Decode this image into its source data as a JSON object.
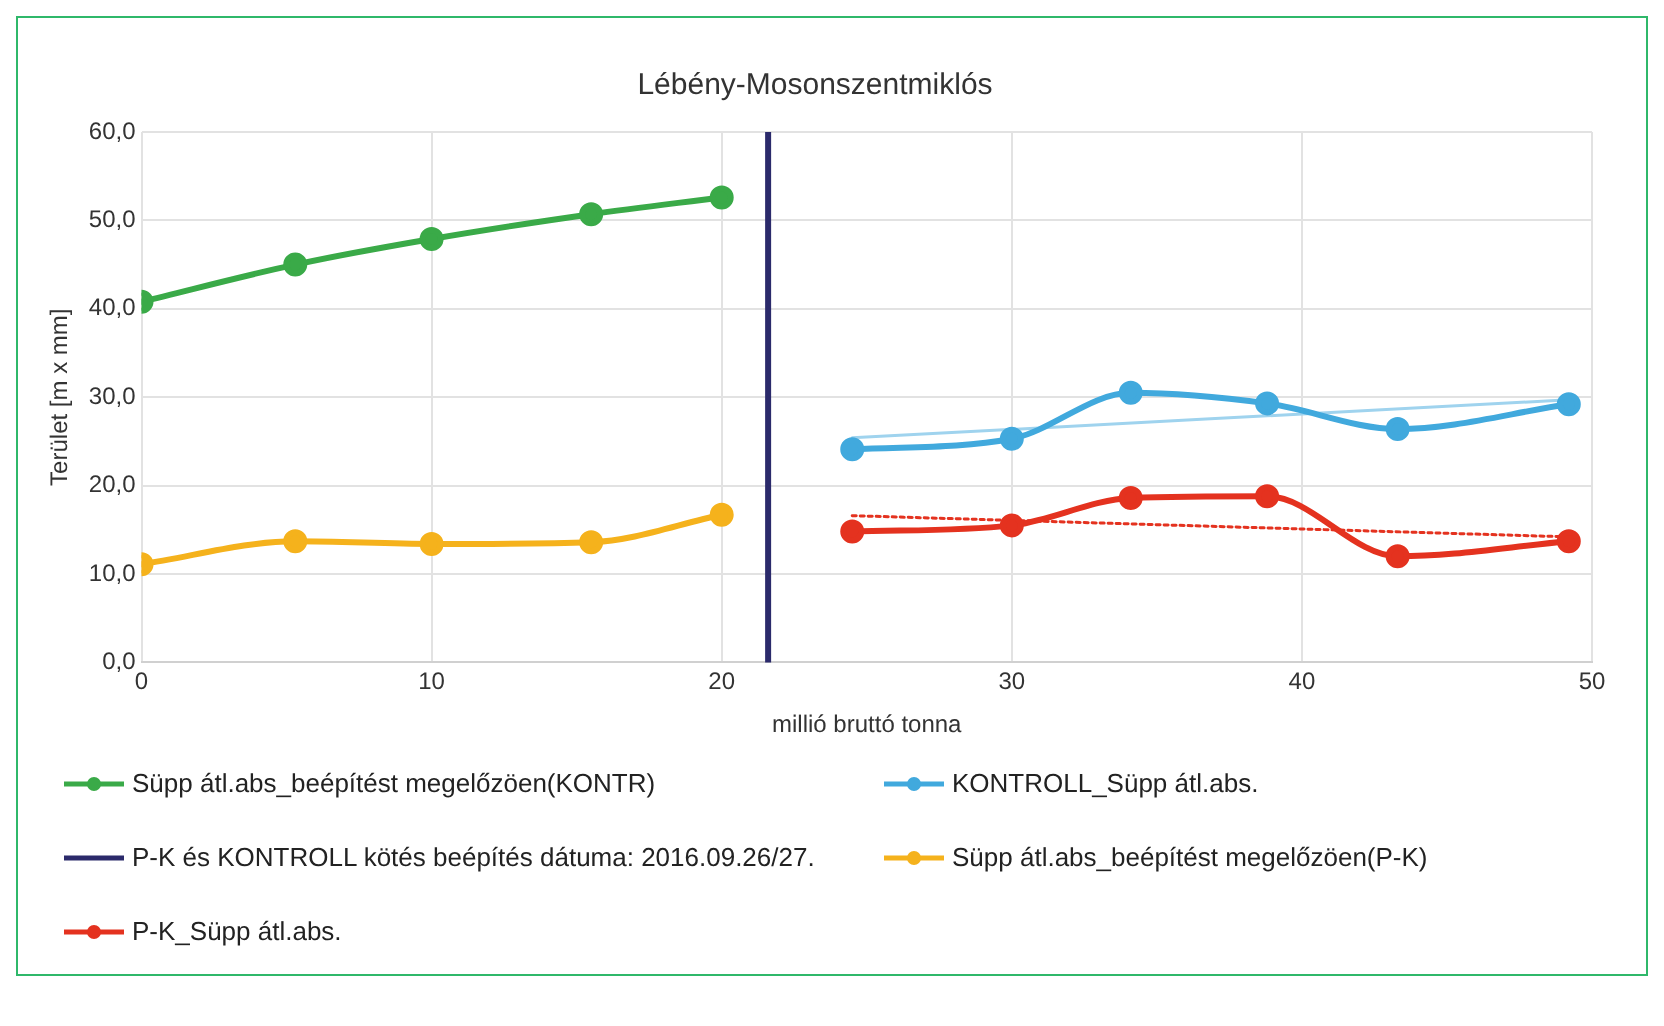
{
  "chart_data": {
    "type": "line",
    "title": "Lébény-Mosonszentmiklós",
    "xlabel": "millió bruttó tonna",
    "ylabel": "Terület [m x mm]",
    "xlim": [
      0,
      50
    ],
    "xticks": [
      0,
      10,
      20,
      30,
      40,
      50
    ],
    "ylim": [
      0,
      60
    ],
    "yticks": [
      {
        "value": 0,
        "label": "0,0"
      },
      {
        "value": 10,
        "label": "10,0"
      },
      {
        "value": 20,
        "label": "20,0"
      },
      {
        "value": 30,
        "label": "30,0"
      },
      {
        "value": 40,
        "label": "40,0"
      },
      {
        "value": 50,
        "label": "50,0"
      },
      {
        "value": 60,
        "label": "60,0"
      }
    ],
    "grid": true,
    "legend": "bottom",
    "marker": "circle",
    "line_style": "solid",
    "series": [
      {
        "name": "Süpp átl.abs_beépítést megelőzöen(KONTR)",
        "color": "#3aaa48",
        "x": [
          0,
          5.3,
          10.0,
          15.5,
          20.0
        ],
        "values": [
          40.8,
          45.0,
          47.9,
          50.7,
          52.6
        ]
      },
      {
        "name": "KONTROLL_Süpp átl.abs.",
        "color": "#41a9dd",
        "x": [
          24.5,
          30.0,
          34.1,
          38.8,
          43.3,
          49.2
        ],
        "values": [
          24.1,
          25.3,
          30.5,
          29.3,
          26.4,
          29.2
        ]
      },
      {
        "name": "P-K és KONTROLL kötés beépítés dátuma: 2016.09.26/27.",
        "color": "#2b2a6b",
        "x": [
          21.6,
          21.6
        ],
        "values": [
          0,
          60
        ],
        "marker": "none"
      },
      {
        "name": "Süpp átl.abs_beépítést megelőzöen(P-K)",
        "color": "#f5b21c",
        "x": [
          0,
          5.3,
          10.0,
          15.5,
          20.0
        ],
        "values": [
          11.1,
          13.7,
          13.4,
          13.6,
          16.7
        ]
      },
      {
        "name": "P-K_Süpp átl.abs.",
        "color": "#e4321f",
        "x": [
          24.5,
          30.0,
          34.1,
          38.8,
          43.3,
          49.2
        ],
        "values": [
          14.8,
          15.5,
          18.6,
          18.8,
          12.0,
          13.7
        ]
      },
      {
        "color": "#9fd3ee",
        "x": [
          24.5,
          49.2
        ],
        "values": [
          25.4,
          29.7
        ],
        "marker": "none"
      },
      {
        "color": "#e4321f",
        "x": [
          24.5,
          49.2
        ],
        "values": [
          16.6,
          14.2
        ],
        "marker": "none",
        "line_style": "dotted"
      }
    ]
  }
}
